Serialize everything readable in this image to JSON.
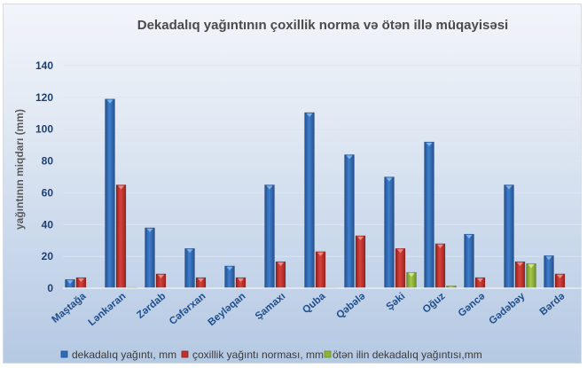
{
  "chart_data": {
    "type": "bar",
    "title": "Dekadalıq yağıntının çoxillik norma  və ötən illə müqayisəsi",
    "xlabel": "",
    "ylabel": "yağıntının miqdarı (mm)",
    "ylim": [
      0,
      140
    ],
    "yticks": [
      0,
      20,
      40,
      60,
      80,
      100,
      120,
      140
    ],
    "grid": true,
    "legend_position": "bottom",
    "categories": [
      "Maştağa",
      "Lənkəran",
      "Zərdab",
      "Cəfərxan",
      "Beyləqan",
      "Şamaxı",
      "Quba",
      "Qəbələ",
      "Şəki",
      "Oğuz",
      "Gəncə",
      "Gədəbəy",
      "Bərdə"
    ],
    "series": [
      {
        "name": "dekadalıq yağıntı, mm",
        "color": "#2f6bb8",
        "values": [
          5.5,
          119,
          38,
          25,
          14,
          65,
          110.5,
          84,
          70,
          92,
          34,
          65,
          20.5
        ]
      },
      {
        "name": "çoxillik yağıntı norması, mm",
        "color": "#c0302c",
        "values": [
          6.7,
          65,
          9,
          6.7,
          6.7,
          16.7,
          23,
          33,
          25,
          28,
          6.7,
          16.7,
          9
        ]
      },
      {
        "name": "ötən ilin dekadalıq yağıntısı,mm",
        "color": "#8db33a",
        "values": [
          0,
          0.5,
          0,
          0,
          0,
          0,
          0.3,
          0,
          10,
          1.5,
          0,
          15.5,
          0
        ]
      }
    ]
  }
}
